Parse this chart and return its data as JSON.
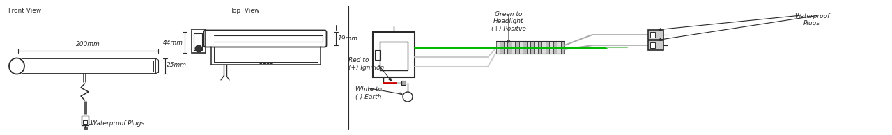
{
  "bg_color": "#ffffff",
  "line_color": "#2a2a2a",
  "green_color": "#00bb00",
  "red_color": "#cc0000",
  "gray_color": "#888888",
  "fig_width": 12.8,
  "fig_height": 1.94,
  "labels": {
    "front_view": "Front View",
    "top_view": "Top  View",
    "dim_200mm": "200mm",
    "dim_25mm": "25mm",
    "dim_44mm": "44mm",
    "dim_19mm": "19mm",
    "waterproof_plugs_left": "Waterproof Plugs",
    "waterproof_plugs_right": "Waterproof\nPlugs",
    "green_to": "Green to\nHeadlight\n(+) Positve",
    "red_to": "Red to\n(+) Ignition",
    "white_to": "White to\n(-) Earth"
  }
}
